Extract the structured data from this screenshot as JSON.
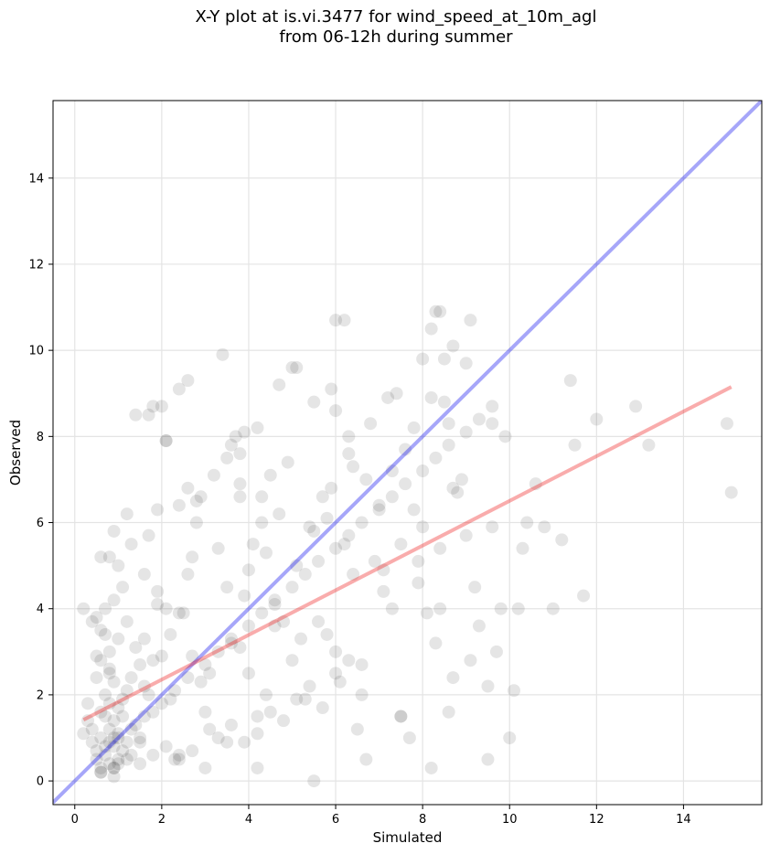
{
  "chart_data": {
    "type": "scatter",
    "title_lines": [
      "X-Y plot at is.vi.3477 for wind_speed_at_10m_agl",
      "from 06-12h during summer"
    ],
    "xlabel": "Simulated",
    "ylabel": "Observed",
    "xlim": [
      -0.5,
      15.8
    ],
    "ylim": [
      -0.55,
      15.8
    ],
    "xticks": [
      0,
      2,
      4,
      6,
      8,
      10,
      12,
      14
    ],
    "yticks": [
      0,
      2,
      4,
      6,
      8,
      10,
      12,
      14
    ],
    "grid": true,
    "legend": "none",
    "colors": {
      "points": "#000000",
      "identity_line": "#0000ee",
      "fit_line": "#ee1111"
    },
    "identity_line": {
      "x": [
        -0.5,
        15.8
      ],
      "y": [
        -0.5,
        15.8
      ]
    },
    "fit_line": {
      "x": [
        0.2,
        15.1
      ],
      "y": [
        1.42,
        9.15
      ]
    },
    "series": [
      {
        "type": "scatter",
        "x": [
          0.7,
          0.8,
          0.9,
          1.0,
          0.6,
          0.8,
          1.1,
          0.9,
          0.7,
          1.2,
          0.5,
          0.8,
          1.0,
          0.6,
          0.9,
          1.3,
          0.7,
          1.0,
          0.8,
          0.6,
          1.1,
          0.9,
          0.4,
          0.7,
          1.4,
          0.8,
          1.0,
          0.5,
          1.2,
          0.9,
          0.6,
          1.5,
          0.8,
          1.1,
          0.7,
          1.3,
          0.9,
          1.6,
          0.5,
          1.0,
          1.8,
          0.8,
          1.2,
          2.0,
          0.7,
          1.4,
          0.9,
          1.7,
          0.6,
          1.1,
          2.2,
          1.0,
          1.5,
          0.8,
          1.9,
          1.3,
          2.4,
          0.9,
          1.6,
          1.2,
          0.3,
          0.4,
          0.5,
          0.6,
          0.2,
          0.4,
          0.3,
          0.5,
          0.2,
          0.6,
          1.5,
          1.8,
          2.1,
          2.4,
          2.7,
          1.6,
          1.9,
          2.2,
          2.5,
          2.8,
          3.1,
          1.7,
          2.0,
          2.3,
          2.6,
          2.9,
          3.2,
          3.5,
          1.4,
          2.8,
          3.0,
          3.3,
          3.6,
          2.1,
          2.6,
          3.8,
          2.4,
          3.1,
          1.9,
          2.7,
          3.5,
          3.8,
          4.1,
          4.4,
          4.7,
          3.6,
          3.9,
          4.2,
          4.5,
          4.8,
          5.1,
          3.7,
          4.0,
          4.3,
          4.6,
          4.9,
          5.2,
          5.5,
          3.4,
          4.2,
          4.7,
          5.0,
          3.8,
          4.4,
          5.3,
          4.0,
          4.6,
          3.9,
          5.1,
          4.3,
          5.5,
          5.8,
          6.1,
          6.4,
          6.7,
          5.6,
          5.9,
          6.2,
          6.5,
          6.8,
          7.1,
          5.7,
          6.0,
          6.3,
          6.6,
          6.9,
          7.2,
          7.5,
          5.4,
          6.2,
          6.7,
          7.0,
          5.8,
          6.4,
          7.3,
          6.0,
          6.6,
          5.9,
          7.1,
          6.3,
          7.5,
          7.8,
          8.1,
          8.4,
          8.7,
          7.6,
          7.9,
          8.2,
          8.5,
          8.8,
          9.1,
          7.7,
          8.0,
          8.3,
          8.6,
          8.9,
          9.2,
          9.5,
          7.4,
          8.2,
          8.7,
          9.0,
          7.8,
          8.4,
          9.3,
          8.0,
          8.6,
          7.9,
          9.1,
          8.3,
          9.5,
          9.8,
          10.0,
          10.3,
          10.6,
          11.0,
          11.2,
          11.5,
          11.7,
          12.0,
          9.6,
          10.2,
          10.8,
          9.9,
          10.4,
          9.7,
          10.1,
          11.4,
          12.9,
          13.2,
          15.0,
          15.1,
          2.1,
          1.7,
          1.8,
          3.5,
          2.6,
          2.4,
          5.0,
          6.0,
          8.5,
          8.7,
          9.0,
          9.6,
          8.2,
          8.4,
          7.3,
          7.5,
          5.5,
          4.2,
          3.8,
          2.9,
          1.0,
          1.3,
          1.6,
          2.0,
          2.3,
          2.6,
          3.0,
          3.3,
          3.6,
          4.0,
          4.3,
          4.6,
          5.0,
          5.3,
          5.6,
          6.0,
          6.3,
          6.6,
          7.0,
          7.3,
          7.6,
          8.0,
          8.3,
          8.6,
          9.0,
          9.3,
          9.6,
          0.6,
          0.9,
          1.2,
          1.5,
          1.8,
          2.1,
          2.4,
          2.7,
          3.0,
          3.3,
          3.6,
          3.9,
          4.2,
          4.5,
          4.8,
          5.1,
          5.4,
          5.7,
          6.0,
          6.3
        ],
        "y": [
          0.6,
          0.4,
          0.8,
          0.5,
          1.0,
          1.2,
          0.7,
          0.3,
          1.5,
          0.9,
          0.5,
          1.8,
          1.1,
          0.2,
          1.4,
          0.6,
          2.0,
          0.4,
          0.9,
          1.6,
          1.9,
          2.3,
          1.2,
          0.8,
          1.3,
          2.6,
          1.7,
          0.7,
          2.1,
          0.1,
          2.8,
          0.9,
          3.0,
          1.5,
          3.4,
          2.4,
          1.0,
          2.2,
          3.8,
          3.3,
          1.6,
          2.5,
          3.7,
          2.9,
          4.0,
          3.1,
          4.2,
          2.0,
          3.5,
          4.5,
          3.4,
          5.0,
          2.7,
          5.2,
          4.1,
          5.5,
          3.9,
          5.8,
          4.8,
          6.2,
          1.8,
          0.9,
          2.9,
          0.3,
          4.0,
          3.7,
          1.4,
          2.4,
          1.1,
          5.2,
          1.0,
          2.8,
          4.0,
          0.6,
          5.2,
          3.3,
          6.3,
          1.9,
          3.9,
          6.5,
          2.5,
          5.7,
          8.7,
          0.5,
          4.8,
          2.3,
          7.1,
          4.5,
          8.5,
          6.0,
          1.6,
          5.4,
          3.2,
          7.9,
          9.3,
          6.6,
          9.1,
          1.2,
          4.4,
          2.9,
          0.9,
          3.1,
          5.5,
          2.0,
          6.2,
          7.8,
          4.3,
          1.5,
          7.1,
          3.7,
          5.0,
          8.0,
          2.5,
          6.6,
          4.1,
          7.4,
          3.3,
          5.8,
          9.9,
          0.3,
          9.2,
          2.8,
          6.9,
          5.3,
          1.9,
          4.9,
          3.6,
          8.1,
          9.6,
          6.0,
          0.0,
          6.1,
          2.3,
          4.8,
          7.0,
          3.7,
          9.1,
          5.5,
          1.2,
          8.3,
          4.4,
          6.6,
          3.0,
          7.6,
          2.0,
          5.1,
          8.9,
          1.5,
          5.9,
          10.7,
          0.5,
          6.4,
          3.4,
          7.3,
          4.0,
          8.6,
          2.7,
          6.8,
          4.9,
          8.0,
          1.5,
          6.3,
          3.9,
          5.4,
          2.4,
          7.7,
          4.6,
          0.3,
          8.8,
          6.7,
          2.8,
          1.0,
          5.9,
          3.2,
          8.3,
          7.0,
          4.5,
          2.2,
          9.0,
          10.5,
          6.8,
          5.7,
          8.2,
          4.0,
          3.6,
          9.8,
          1.6,
          5.1,
          10.7,
          10.9,
          0.5,
          4.0,
          1.0,
          5.4,
          6.9,
          4.0,
          5.6,
          7.8,
          4.3,
          8.4,
          8.3,
          4.0,
          5.9,
          8.0,
          6.0,
          3.0,
          2.1,
          9.3,
          8.7,
          7.8,
          8.3,
          6.7,
          7.9,
          8.5,
          8.7,
          7.5,
          6.8,
          6.4,
          9.6,
          10.7,
          9.8,
          10.1,
          9.7,
          5.9,
          8.9,
          10.9,
          7.2,
          5.5,
          8.8,
          8.2,
          7.6,
          6.6,
          1.0,
          1.2,
          1.5,
          1.8,
          2.1,
          2.4,
          2.7,
          3.0,
          3.3,
          3.6,
          3.9,
          4.2,
          4.5,
          4.8,
          5.1,
          5.4,
          5.7,
          6.0,
          6.3,
          6.6,
          6.9,
          7.2,
          7.5,
          7.8,
          8.1,
          8.4,
          8.7,
          0.2,
          0.3,
          0.5,
          0.4,
          0.6,
          0.8,
          0.5,
          0.7,
          0.3,
          1.0,
          1.3,
          0.9,
          1.1,
          1.6,
          1.4,
          1.9,
          2.2,
          1.7,
          2.5,
          2.8
        ]
      }
    ]
  }
}
